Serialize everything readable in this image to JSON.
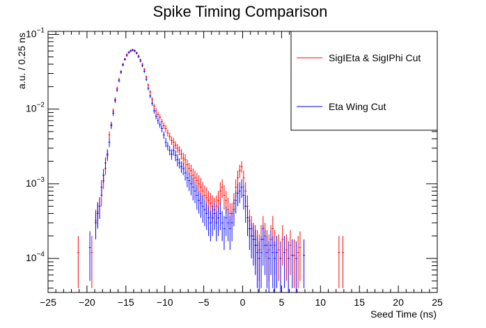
{
  "chart_data": {
    "type": "scatter",
    "title": "Spike Timing Comparison",
    "xlabel": "Seed Time (ns)",
    "ylabel": "a.u. / 0.25 ns",
    "xlim": [
      -25,
      25
    ],
    "ylim": [
      3.5e-05,
      0.11
    ],
    "yscale": "log",
    "x_ticks": [
      "−25",
      "−20",
      "−15",
      "−10",
      "−5",
      "0",
      "5",
      "10",
      "15",
      "20",
      "25"
    ],
    "y_ticks": [
      {
        "base": "10",
        "exp": "−1"
      },
      {
        "base": "10",
        "exp": "−2"
      },
      {
        "base": "10",
        "exp": "−3"
      },
      {
        "base": "10",
        "exp": "−4"
      }
    ],
    "legend_position": "top-right",
    "series": [
      {
        "name": "SigIEta & SigIPhi Cut",
        "color": "#ff0000",
        "points": [
          [
            -21.125,
            0.00012,
            8e-05
          ],
          [
            -19.375,
            0.00012,
            8e-05
          ],
          [
            -18.875,
            0.00032,
            0.00013
          ],
          [
            -18.625,
            0.00042,
            0.00015
          ],
          [
            -18.375,
            0.0005,
            0.00016
          ],
          [
            -18.125,
            0.0007,
            0.0002
          ],
          [
            -17.875,
            0.0011,
            0.00025
          ],
          [
            -17.625,
            0.0016,
            0.0003
          ],
          [
            -17.375,
            0.0024,
            0.0004
          ],
          [
            -17.125,
            0.0045,
            0.0005
          ],
          [
            -16.875,
            0.0062,
            0.0006
          ],
          [
            -16.625,
            0.0095,
            0.0007
          ],
          [
            -16.375,
            0.0135,
            0.0009
          ],
          [
            -16.125,
            0.019,
            0.0011
          ],
          [
            -15.875,
            0.025,
            0.0012
          ],
          [
            -15.625,
            0.032,
            0.0014
          ],
          [
            -15.375,
            0.04,
            0.0016
          ],
          [
            -15.125,
            0.047,
            0.0017
          ],
          [
            -14.875,
            0.054,
            0.0018
          ],
          [
            -14.625,
            0.058,
            0.0019
          ],
          [
            -14.375,
            0.061,
            0.002
          ],
          [
            -14.125,
            0.062,
            0.002
          ],
          [
            -13.875,
            0.061,
            0.002
          ],
          [
            -13.625,
            0.057,
            0.0019
          ],
          [
            -13.375,
            0.052,
            0.0018
          ],
          [
            -13.125,
            0.046,
            0.0017
          ],
          [
            -12.875,
            0.04,
            0.0016
          ],
          [
            -12.625,
            0.034,
            0.0015
          ],
          [
            -12.375,
            0.027,
            0.0013
          ],
          [
            -12.125,
            0.021,
            0.0011
          ],
          [
            -11.875,
            0.017,
            0.001
          ],
          [
            -11.625,
            0.0135,
            0.0009
          ],
          [
            -11.375,
            0.011,
            0.0008
          ],
          [
            -11.125,
            0.0095,
            0.0008
          ],
          [
            -10.875,
            0.0085,
            0.0007
          ],
          [
            -10.625,
            0.0078,
            0.0007
          ],
          [
            -10.375,
            0.0068,
            0.0006
          ],
          [
            -10.125,
            0.006,
            0.0006
          ],
          [
            -9.875,
            0.0055,
            0.0006
          ],
          [
            -9.625,
            0.0048,
            0.0005
          ],
          [
            -9.375,
            0.0043,
            0.0005
          ],
          [
            -9.125,
            0.0038,
            0.0005
          ],
          [
            -8.875,
            0.0036,
            0.0005
          ],
          [
            -8.625,
            0.0033,
            0.0004
          ],
          [
            -8.375,
            0.003,
            0.0004
          ],
          [
            -8.125,
            0.0028,
            0.0004
          ],
          [
            -7.875,
            0.0025,
            0.0004
          ],
          [
            -7.625,
            0.0022,
            0.0004
          ],
          [
            -7.375,
            0.0021,
            0.0004
          ],
          [
            -7.125,
            0.0018,
            0.0003
          ],
          [
            -6.875,
            0.0016,
            0.0003
          ],
          [
            -6.625,
            0.0015,
            0.0003
          ],
          [
            -6.375,
            0.0013,
            0.0003
          ],
          [
            -6.125,
            0.0012,
            0.0003
          ],
          [
            -5.875,
            0.0011,
            0.0003
          ],
          [
            -5.625,
            0.001,
            0.0003
          ],
          [
            -5.375,
            0.0009,
            0.0003
          ],
          [
            -5.125,
            0.0008,
            0.00025
          ],
          [
            -4.875,
            0.0007,
            0.00025
          ],
          [
            -4.625,
            0.00065,
            0.00025
          ],
          [
            -4.375,
            0.0006,
            0.0002
          ],
          [
            -4.125,
            0.00055,
            0.0002
          ],
          [
            -3.875,
            0.0005,
            0.0002
          ],
          [
            -3.625,
            0.00045,
            0.0002
          ],
          [
            -3.375,
            0.0005,
            0.0002
          ],
          [
            -3.125,
            0.0006,
            0.0002
          ],
          [
            -2.875,
            0.0008,
            0.00025
          ],
          [
            -2.625,
            0.0009,
            0.00025
          ],
          [
            -2.375,
            0.0007,
            0.00025
          ],
          [
            -2.125,
            0.0006,
            0.0002
          ],
          [
            -1.875,
            0.00045,
            0.0002
          ],
          [
            -1.625,
            0.0004,
            0.00015
          ],
          [
            -1.375,
            0.0004,
            0.00015
          ],
          [
            -1.125,
            0.00055,
            0.0002
          ],
          [
            -0.875,
            0.0009,
            0.00025
          ],
          [
            -0.625,
            0.0012,
            0.0003
          ],
          [
            -0.375,
            0.0015,
            0.0003
          ],
          [
            -0.125,
            0.0017,
            0.0003
          ],
          [
            0.125,
            0.0012,
            0.0003
          ],
          [
            0.375,
            0.0008,
            0.00025
          ],
          [
            0.625,
            0.0005,
            0.0002
          ],
          [
            0.875,
            0.00032,
            0.00013
          ],
          [
            1.125,
            0.00025,
            0.00012
          ],
          [
            1.375,
            0.0002,
            0.0001
          ],
          [
            1.625,
            0.00018,
            0.0001
          ],
          [
            1.875,
            0.00015,
            9e-05
          ],
          [
            2.125,
            0.00013,
            8e-05
          ],
          [
            2.375,
            0.00018,
            0.0001
          ],
          [
            2.625,
            0.00025,
            0.00012
          ],
          [
            2.875,
            0.0002,
            0.0001
          ],
          [
            3.125,
            0.00015,
            9e-05
          ],
          [
            3.375,
            0.00013,
            8e-05
          ],
          [
            3.625,
            0.00018,
            0.0001
          ],
          [
            3.875,
            0.00025,
            0.00012
          ],
          [
            4.125,
            0.00015,
            9e-05
          ],
          [
            4.625,
            0.00013,
            8e-05
          ],
          [
            5.125,
            0.00018,
            0.0001
          ],
          [
            5.625,
            0.00013,
            8e-05
          ],
          [
            6.125,
            0.00015,
            9e-05
          ],
          [
            6.625,
            0.00011,
            7e-05
          ],
          [
            7.125,
            0.00012,
            8e-05
          ],
          [
            7.375,
            0.00014,
            9e-05
          ],
          [
            12.375,
            0.00012,
            8e-05
          ],
          [
            12.875,
            0.00012,
            8e-05
          ]
        ]
      },
      {
        "name": "Eta Wing Cut",
        "color": "#0000ff",
        "points": [
          [
            -19.625,
            0.00014,
            9e-05
          ],
          [
            -18.875,
            0.0003,
            0.00012
          ],
          [
            -18.625,
            0.0004,
            0.00015
          ],
          [
            -18.375,
            0.0005,
            0.00016
          ],
          [
            -18.125,
            0.0009,
            0.00022
          ],
          [
            -17.875,
            0.0013,
            0.00028
          ],
          [
            -17.625,
            0.0019,
            0.00035
          ],
          [
            -17.375,
            0.0025,
            0.0004
          ],
          [
            -17.125,
            0.0036,
            0.0005
          ],
          [
            -16.875,
            0.006,
            0.0006
          ],
          [
            -16.625,
            0.0088,
            0.0007
          ],
          [
            -16.375,
            0.013,
            0.0009
          ],
          [
            -16.125,
            0.018,
            0.001
          ],
          [
            -15.875,
            0.024,
            0.0012
          ],
          [
            -15.625,
            0.031,
            0.0014
          ],
          [
            -15.375,
            0.039,
            0.0016
          ],
          [
            -15.125,
            0.046,
            0.0017
          ],
          [
            -14.875,
            0.052,
            0.0018
          ],
          [
            -14.625,
            0.057,
            0.0019
          ],
          [
            -14.375,
            0.06,
            0.002
          ],
          [
            -14.125,
            0.062,
            0.002
          ],
          [
            -13.875,
            0.06,
            0.002
          ],
          [
            -13.625,
            0.056,
            0.0019
          ],
          [
            -13.375,
            0.05,
            0.0018
          ],
          [
            -13.125,
            0.044,
            0.0017
          ],
          [
            -12.875,
            0.038,
            0.0016
          ],
          [
            -12.625,
            0.032,
            0.0014
          ],
          [
            -12.375,
            0.025,
            0.0012
          ],
          [
            -12.125,
            0.019,
            0.0011
          ],
          [
            -11.875,
            0.015,
            0.001
          ],
          [
            -11.625,
            0.012,
            0.0009
          ],
          [
            -11.375,
            0.0095,
            0.0008
          ],
          [
            -11.125,
            0.008,
            0.0007
          ],
          [
            -10.875,
            0.007,
            0.0007
          ],
          [
            -10.625,
            0.0062,
            0.0006
          ],
          [
            -10.375,
            0.0055,
            0.0006
          ],
          [
            -10.125,
            0.0045,
            0.0005
          ],
          [
            -9.875,
            0.0036,
            0.0005
          ],
          [
            -9.625,
            0.0032,
            0.0004
          ],
          [
            -9.375,
            0.0028,
            0.0004
          ],
          [
            -9.125,
            0.0025,
            0.0004
          ],
          [
            -8.875,
            0.0028,
            0.0004
          ],
          [
            -8.625,
            0.0024,
            0.0004
          ],
          [
            -8.375,
            0.0021,
            0.0004
          ],
          [
            -8.125,
            0.0019,
            0.0003
          ],
          [
            -7.875,
            0.0017,
            0.0003
          ],
          [
            -7.625,
            0.0016,
            0.0003
          ],
          [
            -7.375,
            0.0014,
            0.0003
          ],
          [
            -7.125,
            0.0012,
            0.0003
          ],
          [
            -6.875,
            0.0011,
            0.0003
          ],
          [
            -6.625,
            0.001,
            0.0003
          ],
          [
            -6.375,
            0.0009,
            0.0003
          ],
          [
            -6.125,
            0.0008,
            0.00025
          ],
          [
            -5.875,
            0.0007,
            0.00025
          ],
          [
            -5.625,
            0.0006,
            0.0002
          ],
          [
            -5.375,
            0.00055,
            0.0002
          ],
          [
            -5.125,
            0.0005,
            0.0002
          ],
          [
            -4.875,
            0.00045,
            0.00018
          ],
          [
            -4.625,
            0.0004,
            0.00016
          ],
          [
            -4.375,
            0.00035,
            0.00015
          ],
          [
            -4.125,
            0.0003,
            0.00013
          ],
          [
            -3.875,
            0.00035,
            0.00015
          ],
          [
            -3.625,
            0.0004,
            0.00016
          ],
          [
            -3.375,
            0.0003,
            0.00013
          ],
          [
            -3.125,
            0.00035,
            0.00015
          ],
          [
            -2.875,
            0.0004,
            0.00016
          ],
          [
            -2.625,
            0.0003,
            0.00013
          ],
          [
            -2.375,
            0.00025,
            0.00012
          ],
          [
            -2.125,
            0.00035,
            0.00015
          ],
          [
            -1.875,
            0.0003,
            0.00013
          ],
          [
            -1.625,
            0.00025,
            0.00012
          ],
          [
            -1.375,
            0.0003,
            0.00013
          ],
          [
            -1.125,
            0.00045,
            0.00018
          ],
          [
            -0.875,
            0.0006,
            0.0002
          ],
          [
            -0.625,
            0.00075,
            0.00025
          ],
          [
            -0.375,
            0.0008,
            0.00025
          ],
          [
            -0.125,
            0.0009,
            0.00025
          ],
          [
            0.125,
            0.0007,
            0.00025
          ],
          [
            0.375,
            0.0005,
            0.0002
          ],
          [
            0.625,
            0.00035,
            0.00015
          ],
          [
            0.875,
            0.00025,
            0.00012
          ],
          [
            1.125,
            0.0002,
            0.0001
          ],
          [
            1.375,
            0.00018,
            0.0001
          ],
          [
            1.625,
            0.00015,
            9e-05
          ],
          [
            1.875,
            0.00012,
            8e-05
          ],
          [
            2.125,
            0.0001,
            7e-05
          ],
          [
            2.375,
            0.00012,
            8e-05
          ],
          [
            2.625,
            0.00018,
            0.0001
          ],
          [
            2.875,
            0.00015,
            9e-05
          ],
          [
            3.125,
            0.00012,
            8e-05
          ],
          [
            3.375,
            0.0001,
            7e-05
          ],
          [
            3.625,
            0.00015,
            9e-05
          ],
          [
            3.875,
            0.00012,
            8e-05
          ],
          [
            4.125,
            0.0001,
            7e-05
          ],
          [
            4.375,
            0.00012,
            8e-05
          ],
          [
            4.875,
            0.0001,
            7e-05
          ],
          [
            5.375,
            0.00012,
            8e-05
          ],
          [
            5.875,
            0.0001,
            7e-05
          ],
          [
            6.375,
            0.00011,
            7e-05
          ],
          [
            6.875,
            0.0001,
            7e-05
          ],
          [
            7.875,
            0.00011,
            7e-05
          ]
        ]
      }
    ]
  }
}
